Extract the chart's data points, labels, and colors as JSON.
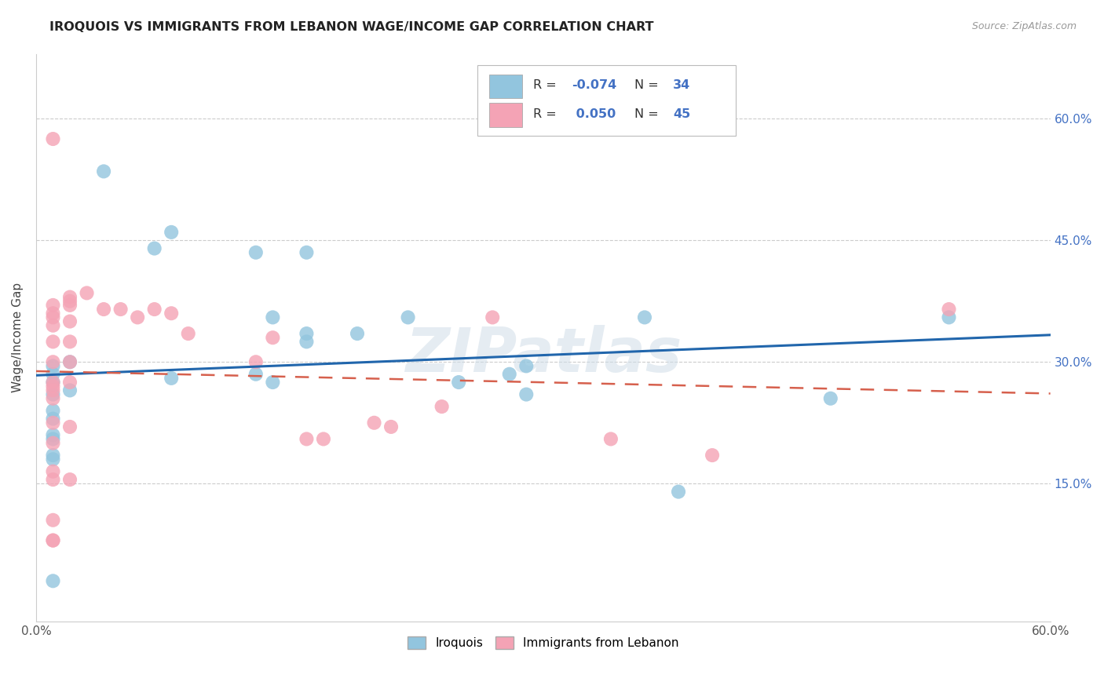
{
  "title": "IROQUOIS VS IMMIGRANTS FROM LEBANON WAGE/INCOME GAP CORRELATION CHART",
  "source": "Source: ZipAtlas.com",
  "ylabel": "Wage/Income Gap",
  "xlim": [
    0.0,
    0.6
  ],
  "ylim": [
    -0.02,
    0.68
  ],
  "ytick_values": [
    0.6,
    0.45,
    0.3,
    0.15
  ],
  "ytick_labels": [
    "60.0%",
    "45.0%",
    "30.0%",
    "15.0%"
  ],
  "xtick_values": [
    0.0,
    0.1,
    0.2,
    0.3,
    0.4,
    0.5,
    0.6
  ],
  "xtick_labels": [
    "0.0%",
    "",
    "",
    "",
    "",
    "",
    "60.0%"
  ],
  "R1": -0.074,
  "N1": 34,
  "R2": 0.05,
  "N2": 45,
  "blue_scatter_color": "#92c5de",
  "pink_scatter_color": "#f4a3b5",
  "blue_line_color": "#2166ac",
  "pink_line_color": "#d6604d",
  "legend1_label": "Iroquois",
  "legend2_label": "Immigrants from Lebanon",
  "watermark": "ZIPatlas",
  "blue_x": [
    0.04,
    0.08,
    0.01,
    0.02,
    0.02,
    0.01,
    0.01,
    0.01,
    0.01,
    0.01,
    0.13,
    0.16,
    0.14,
    0.16,
    0.19,
    0.13,
    0.14,
    0.16,
    0.22,
    0.25,
    0.29,
    0.36,
    0.47,
    0.54,
    0.01,
    0.01,
    0.01,
    0.01,
    0.01,
    0.07,
    0.08,
    0.28,
    0.29,
    0.38
  ],
  "blue_y": [
    0.535,
    0.46,
    0.295,
    0.3,
    0.265,
    0.285,
    0.275,
    0.23,
    0.205,
    0.185,
    0.435,
    0.435,
    0.355,
    0.335,
    0.335,
    0.285,
    0.275,
    0.325,
    0.355,
    0.275,
    0.295,
    0.355,
    0.255,
    0.355,
    0.24,
    0.21,
    0.18,
    0.03,
    0.26,
    0.44,
    0.28,
    0.285,
    0.26,
    0.14
  ],
  "pink_x": [
    0.01,
    0.01,
    0.01,
    0.01,
    0.01,
    0.01,
    0.01,
    0.01,
    0.01,
    0.01,
    0.01,
    0.01,
    0.01,
    0.02,
    0.02,
    0.02,
    0.02,
    0.02,
    0.03,
    0.04,
    0.05,
    0.06,
    0.07,
    0.08,
    0.09,
    0.13,
    0.14,
    0.16,
    0.17,
    0.2,
    0.21,
    0.24,
    0.27,
    0.34,
    0.4,
    0.54,
    0.01,
    0.01,
    0.01,
    0.01,
    0.01,
    0.02,
    0.02,
    0.02,
    0.02
  ],
  "pink_y": [
    0.37,
    0.36,
    0.355,
    0.345,
    0.325,
    0.3,
    0.275,
    0.27,
    0.265,
    0.255,
    0.225,
    0.165,
    0.08,
    0.35,
    0.325,
    0.3,
    0.275,
    0.22,
    0.385,
    0.365,
    0.365,
    0.355,
    0.365,
    0.36,
    0.335,
    0.3,
    0.33,
    0.205,
    0.205,
    0.225,
    0.22,
    0.245,
    0.355,
    0.205,
    0.185,
    0.365,
    0.575,
    0.2,
    0.155,
    0.105,
    0.08,
    0.38,
    0.375,
    0.37,
    0.155
  ]
}
